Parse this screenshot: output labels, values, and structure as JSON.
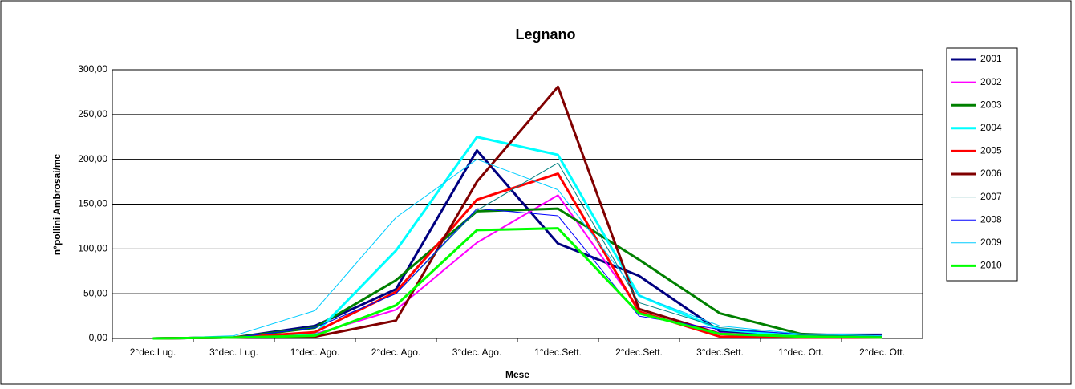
{
  "chart_data": {
    "type": "line",
    "title": "Legnano",
    "x_label": "Mese",
    "y_label": "n°pollini Ambrosai/mc",
    "categories": [
      "2°dec.Lug.",
      "3°dec. Lug.",
      "1°dec. Ago.",
      "2°dec. Ago.",
      "3°dec. Ago.",
      "1°dec.Sett.",
      "2°dec.Sett.",
      "3°dec.Sett.",
      "1°dec. Ott.",
      "2°dec. Ott."
    ],
    "ylim": [
      0,
      300
    ],
    "yticks": [
      {
        "value": 0,
        "label": "0,00"
      },
      {
        "value": 50,
        "label": "50,00"
      },
      {
        "value": 100,
        "label": "100,00"
      },
      {
        "value": 150,
        "label": "150,00"
      },
      {
        "value": 200,
        "label": "200,00"
      },
      {
        "value": 250,
        "label": "250,00"
      },
      {
        "value": 300,
        "label": "300,00"
      }
    ],
    "grid": true,
    "legend": "right",
    "series": [
      {
        "name": "2001",
        "color": "#000080",
        "width": 3,
        "values": [
          0,
          1,
          14,
          55,
          210,
          106,
          70,
          8,
          4,
          3
        ]
      },
      {
        "name": "2002",
        "color": "#ff00ff",
        "width": 2,
        "values": [
          0,
          1,
          5,
          32,
          107,
          160,
          33,
          6,
          2,
          1
        ]
      },
      {
        "name": "2003",
        "color": "#008000",
        "width": 3,
        "values": [
          0,
          1,
          12,
          65,
          142,
          145,
          88,
          28,
          5,
          2
        ]
      },
      {
        "name": "2004",
        "color": "#00ffff",
        "width": 3,
        "values": [
          0,
          1,
          5,
          98,
          225,
          205,
          48,
          10,
          3,
          1
        ]
      },
      {
        "name": "2005",
        "color": "#ff0000",
        "width": 3,
        "values": [
          0,
          1,
          7,
          52,
          155,
          184,
          30,
          2,
          1,
          1
        ]
      },
      {
        "name": "2006",
        "color": "#800000",
        "width": 3,
        "values": [
          0,
          1,
          2,
          20,
          175,
          281,
          33,
          5,
          2,
          1
        ]
      },
      {
        "name": "2007",
        "color": "#008080",
        "width": 1,
        "values": [
          0,
          1,
          12,
          50,
          143,
          196,
          40,
          12,
          4,
          2
        ]
      },
      {
        "name": "2008",
        "color": "#0000ff",
        "width": 1,
        "values": [
          0,
          1,
          12,
          50,
          145,
          137,
          25,
          10,
          5,
          5
        ]
      },
      {
        "name": "2009",
        "color": "#00ccff",
        "width": 1,
        "values": [
          0,
          3,
          31,
          135,
          200,
          166,
          48,
          14,
          5,
          3
        ]
      },
      {
        "name": "2010",
        "color": "#00ff00",
        "width": 3,
        "values": [
          0,
          1,
          3,
          37,
          121,
          123,
          28,
          5,
          2,
          1
        ]
      }
    ]
  }
}
